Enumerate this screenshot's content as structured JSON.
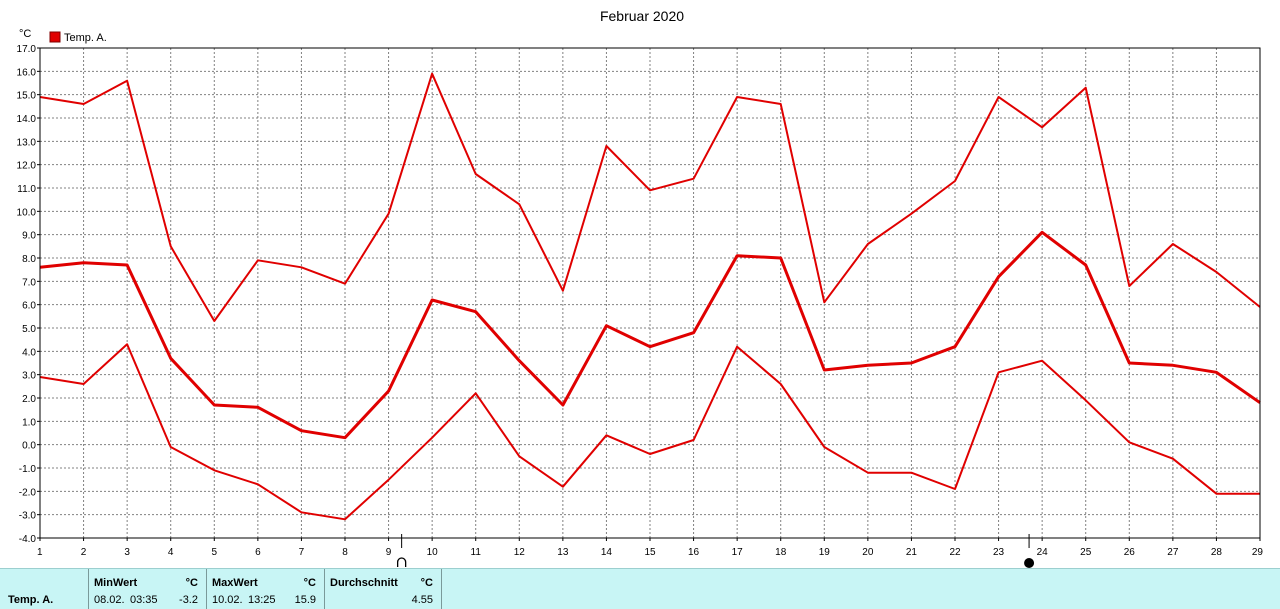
{
  "chart_data": {
    "type": "line",
    "title": "Februar 2020",
    "ylabel": "°C",
    "xlabel": "",
    "ylim": [
      -4.0,
      17.0
    ],
    "xlim": [
      1,
      29
    ],
    "grid": true,
    "legend_position": "top-left",
    "x": [
      1,
      2,
      3,
      4,
      5,
      6,
      7,
      8,
      9,
      10,
      11,
      12,
      13,
      14,
      15,
      16,
      17,
      18,
      19,
      20,
      21,
      22,
      23,
      24,
      25,
      26,
      27,
      28,
      29
    ],
    "y_ticks": [
      "-4.0",
      "-3.0",
      "-2.0",
      "-1.0",
      "0.0",
      "1.0",
      "2.0",
      "3.0",
      "4.0",
      "5.0",
      "6.0",
      "7.0",
      "8.0",
      "9.0",
      "10.0",
      "11.0",
      "12.0",
      "13.0",
      "14.0",
      "15.0",
      "16.0",
      "17.0"
    ],
    "x_ticks": [
      "1",
      "2",
      "3",
      "4",
      "5",
      "6",
      "7",
      "8",
      "9",
      "10",
      "11",
      "12",
      "13",
      "14",
      "15",
      "16",
      "17",
      "18",
      "19",
      "20",
      "21",
      "22",
      "23",
      "24",
      "25",
      "26",
      "27",
      "28",
      "29"
    ],
    "legend": [
      {
        "label": "Temp. A.",
        "color": "#e00000"
      }
    ],
    "series": [
      {
        "name": "Temp. A.",
        "role": "max",
        "color": "#e00000",
        "values": [
          14.9,
          14.6,
          15.6,
          8.5,
          5.3,
          7.9,
          7.6,
          6.9,
          9.9,
          15.9,
          11.6,
          10.3,
          6.6,
          12.8,
          10.9,
          11.4,
          14.9,
          14.6,
          6.1,
          8.6,
          9.9,
          11.3,
          14.9,
          13.6,
          15.3,
          6.8,
          8.6,
          7.4,
          5.9
        ]
      },
      {
        "name": "Temp. A.",
        "role": "mean",
        "color": "#e00000",
        "values": [
          7.6,
          7.8,
          7.7,
          3.7,
          1.7,
          1.6,
          0.6,
          0.3,
          2.3,
          6.2,
          5.7,
          3.6,
          1.7,
          5.1,
          4.2,
          4.8,
          8.1,
          8.0,
          3.2,
          3.4,
          3.5,
          4.2,
          7.2,
          9.1,
          7.7,
          3.5,
          3.4,
          3.1,
          1.8
        ]
      },
      {
        "name": "Temp. A.",
        "role": "min",
        "color": "#e00000",
        "values": [
          2.9,
          2.6,
          4.3,
          -0.1,
          -1.1,
          -1.7,
          -2.9,
          -3.2,
          -1.5,
          0.3,
          2.2,
          -0.5,
          -1.8,
          0.4,
          -0.4,
          0.2,
          4.2,
          2.6,
          -0.1,
          -1.2,
          -1.2,
          -1.9,
          3.1,
          3.6,
          1.9,
          0.1,
          -0.6,
          -2.1,
          -2.1
        ]
      }
    ],
    "moon_markers": [
      {
        "phase": "first-quarter-moon",
        "x": 9.3
      },
      {
        "phase": "new-moon",
        "x": 23.7
      }
    ]
  },
  "summary": {
    "row_label": "Temp. A.",
    "min_header": "MinWert",
    "min_unit": "°C",
    "min_date": "08.02.",
    "min_time": "03:35",
    "min_value": "-3.2",
    "max_header": "MaxWert",
    "max_unit": "°C",
    "max_date": "10.02.",
    "max_time": "13:25",
    "max_value": "15.9",
    "avg_header": "Durchschnitt",
    "avg_unit": "°C",
    "avg_value": "4.55"
  }
}
